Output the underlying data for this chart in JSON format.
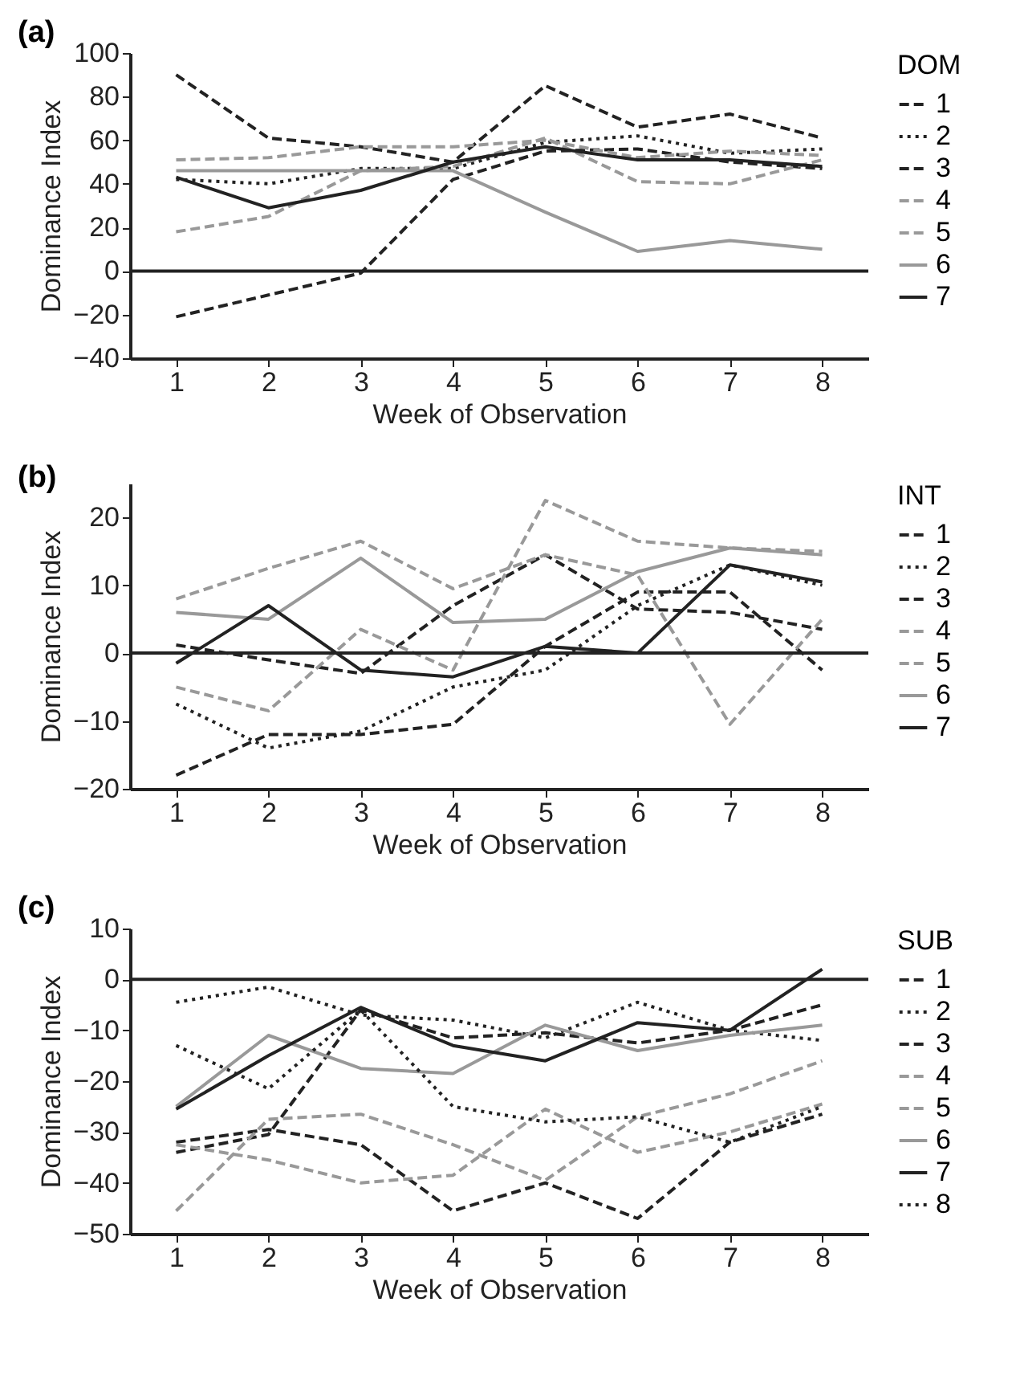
{
  "chart_data": [
    {
      "type": "line",
      "title": "(a)",
      "xlabel": "Week of Observation",
      "ylabel": "Dominance Index",
      "legend_title": "DOM",
      "legend": "right",
      "grid": false,
      "x": [
        1,
        2,
        3,
        4,
        5,
        6,
        7,
        8
      ],
      "xlim": [
        0.5,
        8.5
      ],
      "xticks": [
        1,
        2,
        3,
        4,
        5,
        6,
        7,
        8
      ],
      "ylim": [
        -40,
        100
      ],
      "yticks": [
        -40,
        -20,
        0,
        20,
        40,
        60,
        80,
        100
      ],
      "ref_lines": [
        {
          "axis": "y",
          "value": 0,
          "color": "#222222",
          "line_style": "solid"
        }
      ],
      "series": [
        {
          "name": "1",
          "color": "#222222",
          "line_style": "dashed",
          "values": [
            90,
            61,
            57,
            50,
            85,
            66,
            72,
            61
          ]
        },
        {
          "name": "2",
          "color": "#222222",
          "line_style": "dotted",
          "values": [
            42,
            40,
            47,
            47,
            59,
            62,
            54,
            56
          ]
        },
        {
          "name": "3",
          "color": "#222222",
          "line_style": "dashed",
          "values": [
            -21,
            -11,
            -1,
            42,
            55,
            56,
            50,
            47
          ]
        },
        {
          "name": "4",
          "color": "#999999",
          "line_style": "dashed",
          "values": [
            51,
            52,
            57,
            57,
            60,
            52,
            55,
            53
          ]
        },
        {
          "name": "5",
          "color": "#999999",
          "line_style": "dashed",
          "values": [
            18,
            25,
            46,
            48,
            61,
            41,
            40,
            51
          ]
        },
        {
          "name": "6",
          "color": "#999999",
          "line_style": "solid",
          "values": [
            46,
            46,
            46,
            46,
            27,
            9,
            14,
            10
          ]
        },
        {
          "name": "7",
          "color": "#222222",
          "line_style": "solid",
          "values": [
            43,
            29,
            37,
            50,
            57,
            51,
            51,
            48
          ]
        }
      ]
    },
    {
      "type": "line",
      "title": "(b)",
      "xlabel": "Week of Observation",
      "ylabel": "Dominance Index",
      "legend_title": "INT",
      "legend": "right",
      "grid": false,
      "x": [
        1,
        2,
        3,
        4,
        5,
        6,
        7,
        8
      ],
      "xlim": [
        0.5,
        8.5
      ],
      "xticks": [
        1,
        2,
        3,
        4,
        5,
        6,
        7,
        8
      ],
      "ylim": [
        -20,
        25
      ],
      "yticks": [
        -20,
        -10,
        0,
        10,
        20
      ],
      "ref_lines": [
        {
          "axis": "y",
          "value": 0,
          "color": "#222222",
          "line_style": "solid"
        }
      ],
      "series": [
        {
          "name": "1",
          "color": "#222222",
          "line_style": "dashed",
          "values": [
            -18,
            -12,
            -12,
            -10.5,
            1,
            9,
            9,
            -2.5
          ]
        },
        {
          "name": "2",
          "color": "#222222",
          "line_style": "dotted",
          "values": [
            -7.5,
            -14,
            -11.5,
            -5,
            -2.5,
            7,
            13,
            10
          ]
        },
        {
          "name": "3",
          "color": "#222222",
          "line_style": "dashed",
          "values": [
            1.2,
            -1,
            -3,
            7,
            14.5,
            6.5,
            6,
            3.5
          ]
        },
        {
          "name": "4",
          "color": "#999999",
          "line_style": "dashed",
          "values": [
            -5,
            -8.5,
            3.5,
            -2.5,
            22.5,
            16.5,
            15.5,
            15
          ]
        },
        {
          "name": "5",
          "color": "#999999",
          "line_style": "dashed",
          "values": [
            8,
            12.5,
            16.5,
            9.5,
            14.5,
            11.5,
            -10.5,
            5
          ]
        },
        {
          "name": "6",
          "color": "#999999",
          "line_style": "solid",
          "values": [
            6,
            5,
            14,
            4.5,
            5,
            12,
            15.5,
            14.5
          ]
        },
        {
          "name": "7",
          "color": "#222222",
          "line_style": "solid",
          "values": [
            -1.5,
            7,
            -2.5,
            -3.5,
            1,
            0,
            13,
            10.5
          ]
        }
      ]
    },
    {
      "type": "line",
      "title": "(c)",
      "xlabel": "Week of Observation",
      "ylabel": "Dominance Index",
      "legend_title": "SUB",
      "legend": "right",
      "grid": false,
      "x": [
        1,
        2,
        3,
        4,
        5,
        6,
        7,
        8
      ],
      "xlim": [
        0.5,
        8.5
      ],
      "xticks": [
        1,
        2,
        3,
        4,
        5,
        6,
        7,
        8
      ],
      "ylim": [
        -50,
        10
      ],
      "yticks": [
        -50,
        -40,
        -30,
        -20,
        -10,
        0,
        10
      ],
      "ref_lines": [
        {
          "axis": "y",
          "value": 0,
          "color": "#222222",
          "line_style": "solid"
        }
      ],
      "series": [
        {
          "name": "1",
          "color": "#222222",
          "line_style": "dashed",
          "values": [
            -32,
            -29.5,
            -32.5,
            -45.5,
            -40,
            -47,
            -32,
            -26.5
          ]
        },
        {
          "name": "2",
          "color": "#222222",
          "line_style": "dotted",
          "values": [
            -4.5,
            -1.5,
            -7,
            -8,
            -11.5,
            -4.5,
            -10,
            -12
          ]
        },
        {
          "name": "3",
          "color": "#222222",
          "line_style": "dashed",
          "values": [
            -34,
            -30.5,
            -6,
            -11.5,
            -10.5,
            -12.5,
            -10,
            -5
          ]
        },
        {
          "name": "4",
          "color": "#999999",
          "line_style": "dashed",
          "values": [
            -32.5,
            -35.5,
            -40,
            -38.5,
            -25.5,
            -34,
            -30,
            -24.5
          ]
        },
        {
          "name": "5",
          "color": "#999999",
          "line_style": "dashed",
          "values": [
            -45.5,
            -27.5,
            -26.5,
            -32.5,
            -39.5,
            -27,
            -22.5,
            -16
          ]
        },
        {
          "name": "6",
          "color": "#999999",
          "line_style": "solid",
          "values": [
            -25,
            -11,
            -17.5,
            -18.5,
            -9,
            -14,
            -11,
            -9
          ]
        },
        {
          "name": "7",
          "color": "#222222",
          "line_style": "solid",
          "values": [
            -25.5,
            -15,
            -5.5,
            -13,
            -16,
            -8.5,
            -10,
            2
          ]
        },
        {
          "name": "8",
          "color": "#222222",
          "line_style": "dotted",
          "values": [
            -13,
            -21.5,
            -6,
            -25,
            -28,
            -27,
            -32,
            -25
          ]
        }
      ]
    }
  ]
}
